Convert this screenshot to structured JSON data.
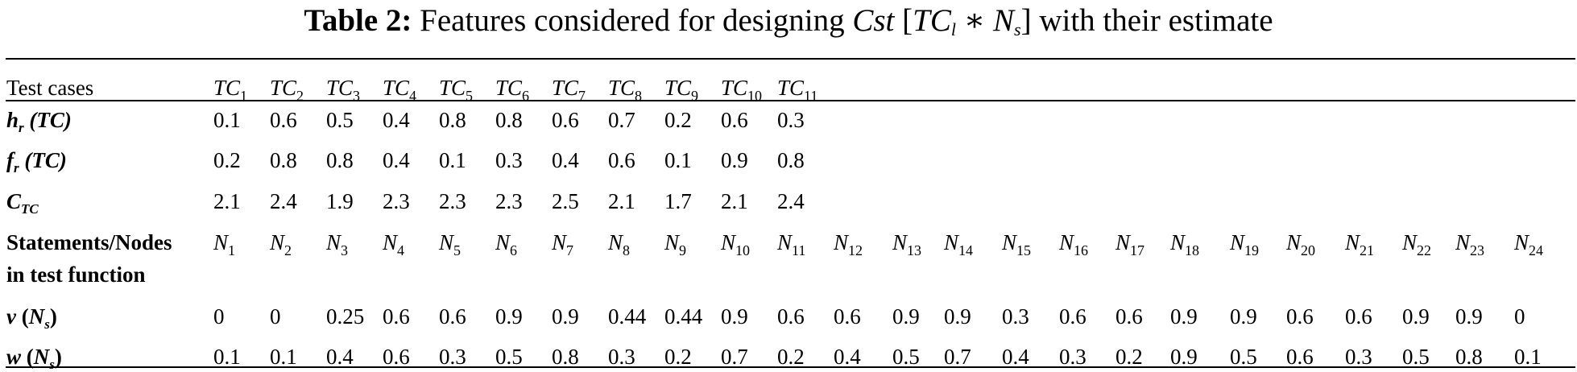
{
  "table": {
    "label": "Table 2:",
    "caption_pre": "Features considered for designing ",
    "caption_math_a": "Cst",
    "caption_math_b": " [",
    "caption_math_c": "TC",
    "caption_sub_c": "l",
    "caption_math_d": " ∗ ",
    "caption_math_e": "N",
    "caption_sub_e": "s",
    "caption_math_f": "]",
    "caption_post": " with their estimate",
    "rows": {
      "test_cases": {
        "label": "Test cases",
        "prefix": "TC",
        "subs": [
          "1",
          "2",
          "3",
          "4",
          "5",
          "6",
          "7",
          "8",
          "9",
          "10",
          "11"
        ]
      },
      "h_r": {
        "sym": "h",
        "sub": "r",
        "arg": " (TC)",
        "values": [
          "0.1",
          "0.6",
          "0.5",
          "0.4",
          "0.8",
          "0.8",
          "0.6",
          "0.7",
          "0.2",
          "0.6",
          "0.3"
        ]
      },
      "f_r": {
        "sym": "f",
        "sub": "r",
        "arg": " (TC)",
        "values": [
          "0.2",
          "0.8",
          "0.8",
          "0.4",
          "0.1",
          "0.3",
          "0.4",
          "0.6",
          "0.1",
          "0.9",
          "0.8"
        ]
      },
      "c_tc": {
        "sym": "C",
        "sub": "TC",
        "values": [
          "2.1",
          "2.4",
          "1.9",
          "2.3",
          "2.3",
          "2.3",
          "2.5",
          "2.1",
          "1.7",
          "2.1",
          "2.4"
        ]
      },
      "nodes": {
        "label_line1": "Statements/Nodes",
        "label_line2": "in test function",
        "prefix": "N",
        "subs": [
          "1",
          "2",
          "3",
          "4",
          "5",
          "6",
          "7",
          "8",
          "9",
          "10",
          "11",
          "12",
          "13",
          "14",
          "15",
          "16",
          "17",
          "18",
          "19",
          "20",
          "21",
          "22",
          "23",
          "24"
        ]
      },
      "v": {
        "sym": "v",
        "arg_open": " (",
        "arg_sym": "N",
        "arg_sub": "s",
        "arg_close": ")",
        "values": [
          "0",
          "0",
          "0.25",
          "0.6",
          "0.6",
          "0.9",
          "0.9",
          "0.44",
          "0.44",
          "0.9",
          "0.6",
          "0.6",
          "0.9",
          "0.9",
          "0.3",
          "0.6",
          "0.6",
          "0.9",
          "0.9",
          "0.6",
          "0.6",
          "0.9",
          "0.9",
          "0"
        ]
      },
      "w": {
        "sym": "w",
        "arg_open": " (",
        "arg_sym": "N",
        "arg_sub": "s",
        "arg_close": ")",
        "values": [
          "0.1",
          "0.1",
          "0.4",
          "0.6",
          "0.3",
          "0.5",
          "0.8",
          "0.3",
          "0.2",
          "0.7",
          "0.2",
          "0.4",
          "0.5",
          "0.7",
          "0.4",
          "0.3",
          "0.2",
          "0.9",
          "0.5",
          "0.6",
          "0.3",
          "0.5",
          "0.8",
          "0.1"
        ]
      }
    }
  }
}
